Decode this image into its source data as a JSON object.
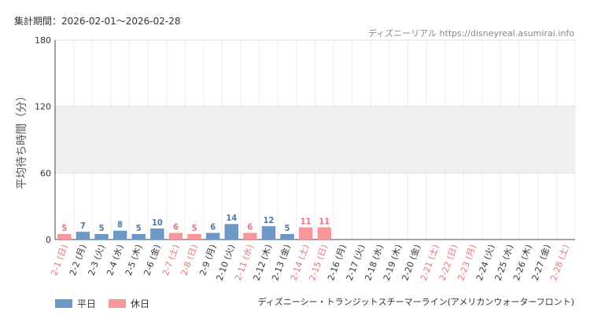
{
  "header": {
    "period": "集計期間：2026-02-01～2026-02-28",
    "watermark": "ディズニーリアル https://disneyreal.asumirai.info"
  },
  "footer": {
    "ride_name": "ディズニーシー・トランジットスチーマーライン(アメリカンウォーターフロント)"
  },
  "colors": {
    "weekday": "#6d97c6",
    "holiday": "#f7969b",
    "weekday_text": "#4d78a8",
    "holiday_text": "#ee6f78",
    "band": "#efefef",
    "grid": "#dddddd"
  },
  "chart_data": {
    "type": "bar",
    "ylabel": "平均待ち時間（分）",
    "xlabel": "",
    "ylim": [
      0,
      180
    ],
    "yticks": [
      0,
      60,
      120,
      180
    ],
    "shaded_band": [
      60,
      120
    ],
    "legend": [
      {
        "label": "平日",
        "kind": "weekday"
      },
      {
        "label": "休日",
        "kind": "holiday"
      }
    ],
    "legend_position": "bottom-left",
    "categories": [
      "2-1 (日)",
      "2-2 (月)",
      "2-3 (火)",
      "2-4 (水)",
      "2-5 (木)",
      "2-6 (金)",
      "2-7 (土)",
      "2-8 (日)",
      "2-9 (月)",
      "2-10 (火)",
      "2-11 (水)",
      "2-12 (木)",
      "2-13 (金)",
      "2-14 (土)",
      "2-15 (日)",
      "2-16 (月)",
      "2-17 (火)",
      "2-18 (水)",
      "2-19 (木)",
      "2-20 (金)",
      "2-21 (土)",
      "2-22 (日)",
      "2-23 (月)",
      "2-24 (火)",
      "2-25 (水)",
      "2-26 (木)",
      "2-27 (金)",
      "2-28 (土)"
    ],
    "day_type": [
      "holiday",
      "weekday",
      "weekday",
      "weekday",
      "weekday",
      "weekday",
      "holiday",
      "holiday",
      "weekday",
      "weekday",
      "holiday",
      "weekday",
      "weekday",
      "holiday",
      "holiday",
      "weekday",
      "weekday",
      "weekday",
      "weekday",
      "weekday",
      "holiday",
      "holiday",
      "holiday",
      "weekday",
      "weekday",
      "weekday",
      "weekday",
      "holiday"
    ],
    "values": [
      5,
      7,
      5,
      8,
      5,
      10,
      6,
      5,
      6,
      14,
      6,
      12,
      5,
      11,
      11,
      null,
      null,
      null,
      null,
      null,
      null,
      null,
      null,
      null,
      null,
      null,
      null,
      null
    ]
  }
}
